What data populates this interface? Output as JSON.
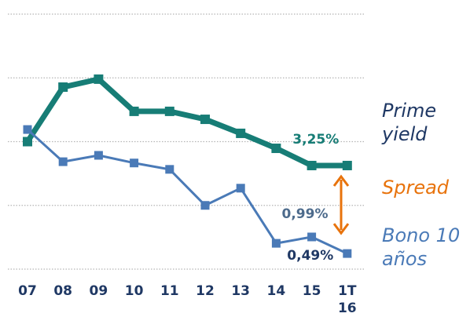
{
  "chart_data": {
    "type": "line",
    "categories": [
      "07",
      "08",
      "09",
      "10",
      "11",
      "12",
      "13",
      "14",
      "15",
      "1T\n16"
    ],
    "series": [
      {
        "name": "Prime yield",
        "color": "#177d76",
        "values": [
          4.0,
          5.71,
          5.96,
          4.95,
          4.95,
          4.7,
          4.26,
          3.79,
          3.25,
          3.25
        ],
        "value_labels": [
          null,
          null,
          null,
          null,
          null,
          null,
          null,
          null,
          null,
          "3,25%"
        ]
      },
      {
        "name": "Bono 10 años",
        "color": "#4a7ab7",
        "values": [
          4.38,
          3.37,
          3.57,
          3.33,
          3.13,
          2.0,
          2.54,
          0.81,
          1.01,
          0.49
        ],
        "value_labels": [
          null,
          null,
          null,
          null,
          null,
          null,
          null,
          null,
          null,
          "0,49%"
        ]
      }
    ],
    "annotations": [
      {
        "text": "Spread",
        "color": "#e8730c"
      },
      {
        "text": "0,99%"
      }
    ],
    "ylim": [
      0,
      8
    ],
    "yticks": [
      0,
      2,
      4,
      6,
      8
    ],
    "grid": true
  }
}
